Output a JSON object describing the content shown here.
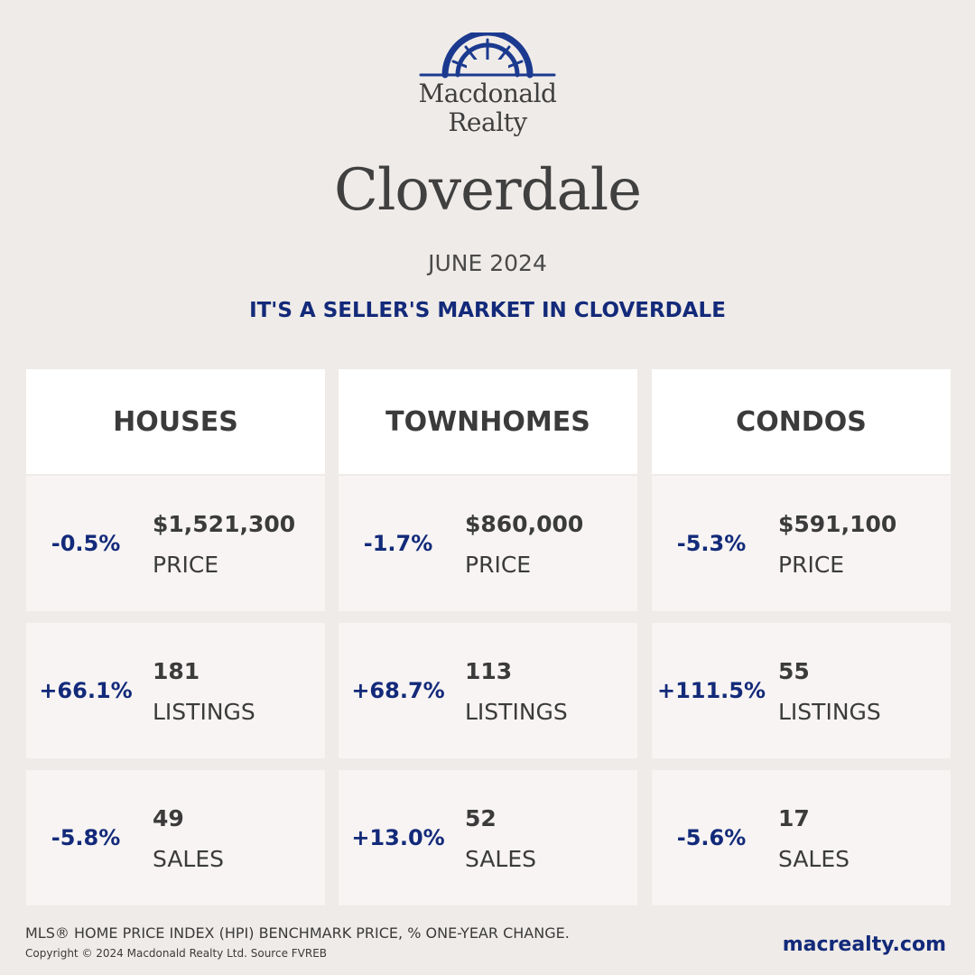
{
  "brand": {
    "name_line1": "Macdonald",
    "name_line2": "Realty",
    "logo_color": "#1b3a8f"
  },
  "city": "Cloverdale",
  "period": "JUNE 2024",
  "headline": "IT'S A SELLER'S MARKET IN CLOVERDALE",
  "colors": {
    "background": "#efebe8",
    "accent": "#132a7a",
    "text": "#3b3b3b",
    "card": "#f7f4f3",
    "header": "#ffffff"
  },
  "columns": [
    {
      "title": "HOUSES",
      "stats": [
        {
          "change": "-0.5%",
          "value": "$1,521,300",
          "label": "PRICE"
        },
        {
          "change": "+66.1%",
          "value": "181",
          "label": "LISTINGS"
        },
        {
          "change": "-5.8%",
          "value": "49",
          "label": "SALES"
        }
      ]
    },
    {
      "title": "TOWNHOMES",
      "stats": [
        {
          "change": "-1.7%",
          "value": "$860,000",
          "label": "PRICE"
        },
        {
          "change": "+68.7%",
          "value": "113",
          "label": "LISTINGS"
        },
        {
          "change": "+13.0%",
          "value": "52",
          "label": "SALES"
        }
      ]
    },
    {
      "title": "CONDOS",
      "stats": [
        {
          "change": "-5.3%",
          "value": "$591,100",
          "label": "PRICE"
        },
        {
          "change": "+111.5%",
          "value": "55",
          "label": "LISTINGS"
        },
        {
          "change": "-5.6%",
          "value": "17",
          "label": "SALES"
        }
      ]
    }
  ],
  "footer": {
    "note": "MLS® HOME PRICE INDEX (HPI) BENCHMARK PRICE, % ONE-YEAR CHANGE.",
    "copyright": "Copyright © 2024 Macdonald Realty Ltd. Source FVREB",
    "url": "macrealty.com"
  }
}
